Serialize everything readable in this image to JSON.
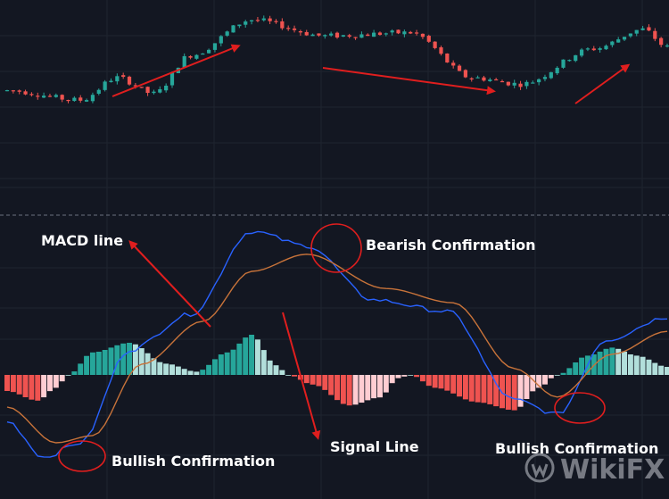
{
  "colors": {
    "background": "#131722",
    "grid": "#1f2430",
    "separator": "#6b7080",
    "candle_up": "#26a69a",
    "candle_down": "#ef5350",
    "macd_line": "#2962ff",
    "signal_line": "#c8733a",
    "hist_pos_strong": "#26a69a",
    "hist_pos_weak": "#b2dfdb",
    "hist_neg_strong": "#ef5350",
    "hist_neg_weak": "#ffcdd2",
    "annotation": "#e01e1e"
  },
  "annotations": {
    "macd_line": "MACD line",
    "signal_line": "Signal Line",
    "bearish": "Bearish Confirmation",
    "bullish_left": "Bullish Confirmation",
    "bullish_right": "Bullish Confirmation"
  },
  "watermark": {
    "text": "WikiFX",
    "icon": "wikifx-logo-icon"
  },
  "chart_data": [
    {
      "type": "candlestick",
      "trend_keypoints": [
        [
          0,
          0.52
        ],
        [
          12,
          0.46
        ],
        [
          18,
          0.6
        ],
        [
          24,
          0.5
        ],
        [
          30,
          0.74
        ],
        [
          40,
          0.96
        ],
        [
          52,
          0.86
        ],
        [
          66,
          0.88
        ],
        [
          76,
          0.6
        ],
        [
          84,
          0.56
        ],
        [
          96,
          0.78
        ],
        [
          104,
          0.9
        ],
        [
          108,
          0.79
        ]
      ],
      "candle_count": 109
    },
    {
      "type": "line",
      "series": [
        {
          "name": "MACD line",
          "keypoints": [
            [
              0,
              -0.45
            ],
            [
              6,
              -0.7
            ],
            [
              12,
              -0.6
            ],
            [
              20,
              0.05
            ],
            [
              30,
              0.3
            ],
            [
              40,
              0.88
            ],
            [
              49,
              0.78
            ],
            [
              60,
              0.4
            ],
            [
              72,
              0.32
            ],
            [
              83,
              -0.3
            ],
            [
              90,
              -0.4
            ],
            [
              98,
              0.12
            ],
            [
              108,
              0.28
            ]
          ]
        },
        {
          "name": "Signal Line",
          "keypoints": [
            [
              0,
              -0.35
            ],
            [
              8,
              -0.6
            ],
            [
              14,
              -0.55
            ],
            [
              22,
              -0.05
            ],
            [
              32,
              0.25
            ],
            [
              40,
              0.6
            ],
            [
              49,
              0.72
            ],
            [
              62,
              0.48
            ],
            [
              73,
              0.38
            ],
            [
              83,
              -0.08
            ],
            [
              90,
              -0.28
            ],
            [
              99,
              0.02
            ],
            [
              108,
              0.18
            ]
          ]
        }
      ]
    },
    {
      "type": "bar",
      "name": "MACD histogram",
      "keypoints": [
        [
          0,
          -0.1
        ],
        [
          5,
          -0.16
        ],
        [
          8,
          -0.08
        ],
        [
          10,
          0.0
        ],
        [
          14,
          0.14
        ],
        [
          20,
          0.2
        ],
        [
          26,
          0.07
        ],
        [
          31,
          0.02
        ],
        [
          36,
          0.14
        ],
        [
          40,
          0.25
        ],
        [
          44,
          0.06
        ],
        [
          46,
          0.0
        ],
        [
          50,
          -0.06
        ],
        [
          56,
          -0.19
        ],
        [
          61,
          -0.14
        ],
        [
          64,
          -0.02
        ],
        [
          66,
          0.0
        ],
        [
          70,
          -0.08
        ],
        [
          77,
          -0.17
        ],
        [
          83,
          -0.22
        ],
        [
          87,
          -0.08
        ],
        [
          90,
          0.0
        ],
        [
          95,
          0.12
        ],
        [
          99,
          0.17
        ],
        [
          103,
          0.12
        ],
        [
          108,
          0.05
        ]
      ],
      "bar_count": 109
    }
  ]
}
